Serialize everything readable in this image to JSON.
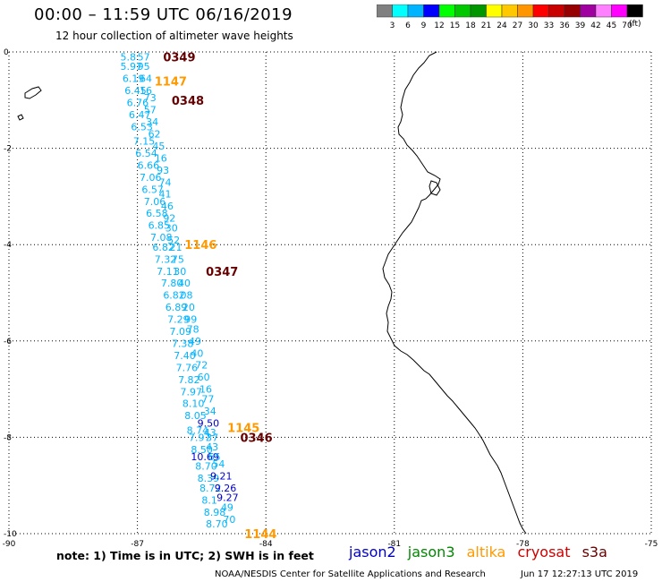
{
  "title": "00:00 – 11:59 UTC 06/16/2019",
  "subtitle": "12 hour collection of altimeter wave heights",
  "unit_label": "(ft)",
  "colorbar": {
    "colors": [
      "#808080",
      "#00ffff",
      "#00b4ff",
      "#0000ff",
      "#00ff00",
      "#00c800",
      "#009600",
      "#ffff00",
      "#ffc800",
      "#ff9600",
      "#ff0000",
      "#c80000",
      "#960000",
      "#a000a0",
      "#ff80ff",
      "#ff00ff",
      "#000000"
    ],
    "labels": [
      "3",
      "6",
      "9",
      "12",
      "15",
      "18",
      "21",
      "24",
      "27",
      "30",
      "33",
      "36",
      "39",
      "42",
      "45",
      "70"
    ]
  },
  "axes": {
    "y_labels": [
      "0",
      "-2",
      "-4",
      "-6",
      "-8",
      "-10"
    ],
    "x_labels": [
      "-90",
      "-87",
      "-84",
      "-81",
      "-78",
      "-75"
    ],
    "lon_range": [
      -90,
      -75
    ],
    "lat_range": [
      -10,
      0
    ],
    "grid": "dotted"
  },
  "satellite_colors": {
    "jason2": "#0000cc",
    "jason3": "#008800",
    "altika": "#ff9900",
    "cryosat": "#cc0000",
    "s3a": "#660000",
    "swh": "#00b4ff"
  },
  "pass_times": [
    {
      "text": "0349",
      "sat": "s3a",
      "lon": -86.4,
      "lat": -0.1
    },
    {
      "text": "1147",
      "sat": "altika",
      "lon": -86.6,
      "lat": -0.6
    },
    {
      "text": "0348",
      "sat": "s3a",
      "lon": -86.2,
      "lat": -1.0
    },
    {
      "text": "1146",
      "sat": "altika",
      "lon": -85.9,
      "lat": -4.0
    },
    {
      "text": "0347",
      "sat": "s3a",
      "lon": -85.4,
      "lat": -4.55
    },
    {
      "text": "1145",
      "sat": "altika",
      "lon": -84.9,
      "lat": -7.8
    },
    {
      "text": "0346",
      "sat": "s3a",
      "lon": -84.6,
      "lat": -8.0
    },
    {
      "text": "1144",
      "sat": "altika",
      "lon": -84.5,
      "lat": -10.0
    }
  ],
  "wave_heights": [
    {
      "text": "5.8",
      "sat": "swh",
      "lon": -87.4,
      "lat": -0.1
    },
    {
      "text": "57",
      "sat": "swh",
      "lon": -87.0,
      "lat": -0.1
    },
    {
      "text": "5.97",
      "sat": "swh",
      "lon": -87.4,
      "lat": -0.3
    },
    {
      "text": "95",
      "sat": "swh",
      "lon": -87.0,
      "lat": -0.3
    },
    {
      "text": "6.19",
      "sat": "swh",
      "lon": -87.35,
      "lat": -0.55
    },
    {
      "text": "64",
      "sat": "swh",
      "lon": -86.95,
      "lat": -0.55
    },
    {
      "text": "6.45",
      "sat": "swh",
      "lon": -87.3,
      "lat": -0.8
    },
    {
      "text": "16",
      "sat": "swh",
      "lon": -86.95,
      "lat": -0.8
    },
    {
      "text": "73",
      "sat": "swh",
      "lon": -86.85,
      "lat": -0.95
    },
    {
      "text": "6.76",
      "sat": "swh",
      "lon": -87.25,
      "lat": -1.05
    },
    {
      "text": "57",
      "sat": "swh",
      "lon": -86.85,
      "lat": -1.2
    },
    {
      "text": "6.47",
      "sat": "swh",
      "lon": -87.2,
      "lat": -1.3
    },
    {
      "text": "34",
      "sat": "swh",
      "lon": -86.8,
      "lat": -1.45
    },
    {
      "text": "6.53",
      "sat": "swh",
      "lon": -87.15,
      "lat": -1.55
    },
    {
      "text": "62",
      "sat": "swh",
      "lon": -86.75,
      "lat": -1.7
    },
    {
      "text": "7.15",
      "sat": "swh",
      "lon": -87.1,
      "lat": -1.85
    },
    {
      "text": "45",
      "sat": "swh",
      "lon": -86.65,
      "lat": -1.95
    },
    {
      "text": "6.54",
      "sat": "swh",
      "lon": -87.05,
      "lat": -2.1
    },
    {
      "text": "16",
      "sat": "swh",
      "lon": -86.6,
      "lat": -2.2
    },
    {
      "text": "6.66",
      "sat": "swh",
      "lon": -87.0,
      "lat": -2.35
    },
    {
      "text": "93",
      "sat": "swh",
      "lon": -86.55,
      "lat": -2.45
    },
    {
      "text": "7.06",
      "sat": "swh",
      "lon": -86.95,
      "lat": -2.6
    },
    {
      "text": "74",
      "sat": "swh",
      "lon": -86.5,
      "lat": -2.7
    },
    {
      "text": "6.57",
      "sat": "swh",
      "lon": -86.9,
      "lat": -2.85
    },
    {
      "text": "41",
      "sat": "swh",
      "lon": -86.5,
      "lat": -2.95
    },
    {
      "text": "7.06",
      "sat": "swh",
      "lon": -86.85,
      "lat": -3.1
    },
    {
      "text": "46",
      "sat": "swh",
      "lon": -86.45,
      "lat": -3.2
    },
    {
      "text": "6.58",
      "sat": "swh",
      "lon": -86.8,
      "lat": -3.35
    },
    {
      "text": "92",
      "sat": "swh",
      "lon": -86.4,
      "lat": -3.45
    },
    {
      "text": "6.85",
      "sat": "swh",
      "lon": -86.75,
      "lat": -3.6
    },
    {
      "text": "30",
      "sat": "swh",
      "lon": -86.35,
      "lat": -3.65
    },
    {
      "text": "7.08",
      "sat": "swh",
      "lon": -86.7,
      "lat": -3.85
    },
    {
      "text": "52",
      "sat": "swh",
      "lon": -86.3,
      "lat": -3.9
    },
    {
      "text": "6.82",
      "sat": "swh",
      "lon": -86.65,
      "lat": -4.05
    },
    {
      "text": "21",
      "sat": "swh",
      "lon": -86.25,
      "lat": -4.05
    },
    {
      "text": "7.32",
      "sat": "swh",
      "lon": -86.6,
      "lat": -4.3
    },
    {
      "text": "75",
      "sat": "swh",
      "lon": -86.2,
      "lat": -4.3
    },
    {
      "text": "7.11",
      "sat": "swh",
      "lon": -86.55,
      "lat": -4.55
    },
    {
      "text": "30",
      "sat": "swh",
      "lon": -86.15,
      "lat": -4.55
    },
    {
      "text": "7.80",
      "sat": "swh",
      "lon": -86.45,
      "lat": -4.8
    },
    {
      "text": "40",
      "sat": "swh",
      "lon": -86.05,
      "lat": -4.8
    },
    {
      "text": "6.82",
      "sat": "swh",
      "lon": -86.4,
      "lat": -5.05
    },
    {
      "text": "08",
      "sat": "swh",
      "lon": -86.0,
      "lat": -5.05
    },
    {
      "text": "6.89",
      "sat": "swh",
      "lon": -86.35,
      "lat": -5.3
    },
    {
      "text": "20",
      "sat": "swh",
      "lon": -85.95,
      "lat": -5.3
    },
    {
      "text": "7.29",
      "sat": "swh",
      "lon": -86.3,
      "lat": -5.55
    },
    {
      "text": "99",
      "sat": "swh",
      "lon": -85.9,
      "lat": -5.55
    },
    {
      "text": "7.09",
      "sat": "swh",
      "lon": -86.25,
      "lat": -5.8
    },
    {
      "text": "78",
      "sat": "swh",
      "lon": -85.85,
      "lat": -5.75
    },
    {
      "text": "7.38",
      "sat": "swh",
      "lon": -86.2,
      "lat": -6.05
    },
    {
      "text": "49",
      "sat": "swh",
      "lon": -85.8,
      "lat": -6.0
    },
    {
      "text": "7.40",
      "sat": "swh",
      "lon": -86.15,
      "lat": -6.3
    },
    {
      "text": "40",
      "sat": "swh",
      "lon": -85.75,
      "lat": -6.25
    },
    {
      "text": "7.76",
      "sat": "swh",
      "lon": -86.1,
      "lat": -6.55
    },
    {
      "text": "72",
      "sat": "swh",
      "lon": -85.65,
      "lat": -6.5
    },
    {
      "text": "7.82",
      "sat": "swh",
      "lon": -86.05,
      "lat": -6.8
    },
    {
      "text": "60",
      "sat": "swh",
      "lon": -85.6,
      "lat": -6.75
    },
    {
      "text": "7.97",
      "sat": "swh",
      "lon": -86.0,
      "lat": -7.05
    },
    {
      "text": "16",
      "sat": "swh",
      "lon": -85.55,
      "lat": -7.0
    },
    {
      "text": "8.10",
      "sat": "swh",
      "lon": -85.95,
      "lat": -7.3
    },
    {
      "text": "77",
      "sat": "swh",
      "lon": -85.5,
      "lat": -7.2
    },
    {
      "text": "8.05",
      "sat": "swh",
      "lon": -85.9,
      "lat": -7.55
    },
    {
      "text": "34",
      "sat": "swh",
      "lon": -85.45,
      "lat": -7.45
    },
    {
      "text": "9.50",
      "sat": "jason2",
      "lon": -85.6,
      "lat": -7.7
    },
    {
      "text": "8.74",
      "sat": "swh",
      "lon": -85.85,
      "lat": -7.85
    },
    {
      "text": "43",
      "sat": "swh",
      "lon": -85.45,
      "lat": -7.9
    },
    {
      "text": "7.97",
      "sat": "swh",
      "lon": -85.8,
      "lat": -8.0
    },
    {
      "text": "37",
      "sat": "swh",
      "lon": -85.4,
      "lat": -8.0
    },
    {
      "text": "8.50",
      "sat": "swh",
      "lon": -85.75,
      "lat": -8.25
    },
    {
      "text": "43",
      "sat": "swh",
      "lon": -85.4,
      "lat": -8.2
    },
    {
      "text": "10.69",
      "sat": "jason2",
      "lon": -85.75,
      "lat": -8.4
    },
    {
      "text": "65",
      "sat": "swh",
      "lon": -85.35,
      "lat": -8.4
    },
    {
      "text": "8.70",
      "sat": "swh",
      "lon": -85.65,
      "lat": -8.6
    },
    {
      "text": "54",
      "sat": "swh",
      "lon": -85.25,
      "lat": -8.55
    },
    {
      "text": "8.39",
      "sat": "swh",
      "lon": -85.6,
      "lat": -8.85
    },
    {
      "text": "9.21",
      "sat": "jason2",
      "lon": -85.3,
      "lat": -8.8
    },
    {
      "text": "8.72",
      "sat": "swh",
      "lon": -85.55,
      "lat": -9.05
    },
    {
      "text": "9.26",
      "sat": "jason2",
      "lon": -85.2,
      "lat": -9.05
    },
    {
      "text": "8.1",
      "sat": "swh",
      "lon": -85.5,
      "lat": -9.3
    },
    {
      "text": "9.27",
      "sat": "jason2",
      "lon": -85.15,
      "lat": -9.25
    },
    {
      "text": "8.98",
      "sat": "swh",
      "lon": -85.45,
      "lat": -9.55
    },
    {
      "text": "49",
      "sat": "swh",
      "lon": -85.05,
      "lat": -9.45
    },
    {
      "text": "8.70",
      "sat": "swh",
      "lon": -85.4,
      "lat": -9.8
    },
    {
      "text": "70",
      "sat": "swh",
      "lon": -85.0,
      "lat": -9.7
    }
  ],
  "legend": {
    "jason2": "jason2",
    "jason3": "jason3",
    "altika": "altika",
    "cryosat": "cryosat",
    "s3a": "s3a"
  },
  "note": "note: 1) Time is in UTC; 2) SWH is in feet",
  "credit": "NOAA/NESDIS Center for Satellite Applications and Research",
  "timestamp": "Jun 17 12:27:13 UTC 2019"
}
